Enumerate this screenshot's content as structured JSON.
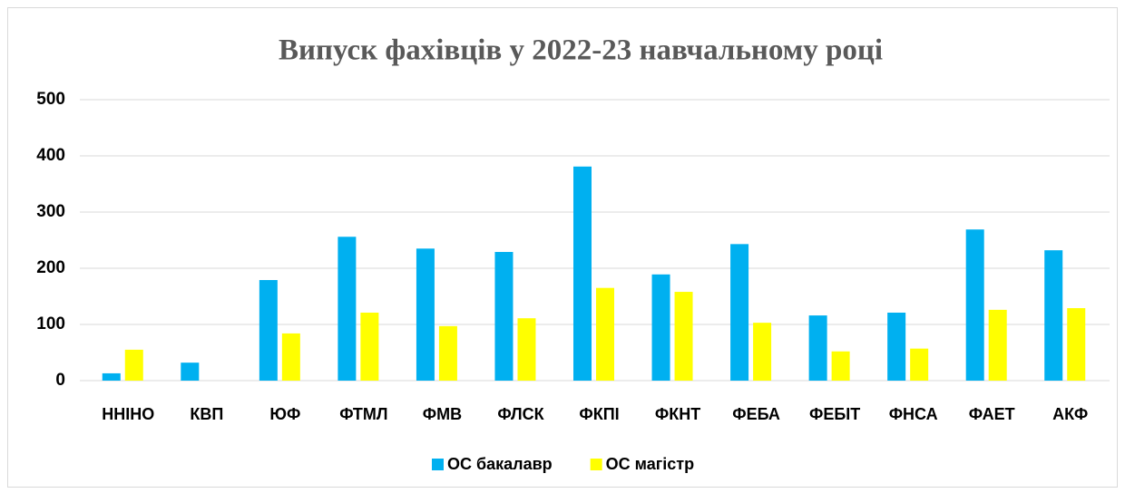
{
  "chart_data": {
    "type": "bar",
    "title": "Випуск фахівців у 2022-23 навчальному році",
    "categories": [
      "ННІНО",
      "КВП",
      "ЮФ",
      "ФТМЛ",
      "ФМВ",
      "ФЛСК",
      "ФКПІ",
      "ФКНТ",
      "ФЕБА",
      "ФЕБІТ",
      "ФНСА",
      "ФАЕТ",
      "АКФ"
    ],
    "series": [
      {
        "name": "ОС бакалавр",
        "color": "#00b0f0",
        "values": [
          13,
          32,
          179,
          256,
          235,
          229,
          381,
          189,
          243,
          116,
          121,
          269,
          232
        ]
      },
      {
        "name": "ОС магістр",
        "color": "#ffff00",
        "values": [
          55,
          0,
          84,
          121,
          97,
          111,
          165,
          158,
          103,
          52,
          57,
          126,
          129
        ]
      }
    ],
    "ylim": [
      0,
      500
    ],
    "yticks": [
      0,
      100,
      200,
      300,
      400,
      500
    ],
    "grid": true,
    "legend": "bottom"
  }
}
